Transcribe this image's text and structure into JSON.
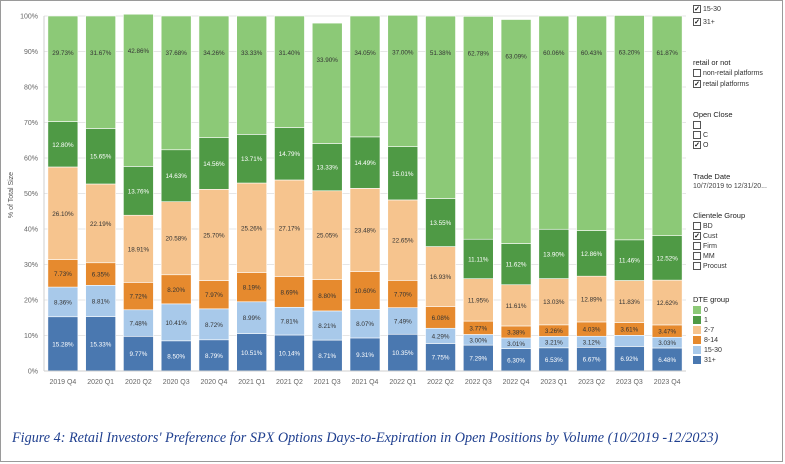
{
  "chart_data": {
    "type": "bar",
    "stacked": true,
    "ylabel": "% of Total Size",
    "yticks": [
      "0%",
      "10%",
      "20%",
      "30%",
      "40%",
      "50%",
      "60%",
      "70%",
      "80%",
      "90%",
      "100%"
    ],
    "ylim": [
      0,
      100
    ],
    "categories": [
      "2019 Q4",
      "2020 Q1",
      "2020 Q2",
      "2020 Q3",
      "2020 Q4",
      "2021 Q1",
      "2021 Q2",
      "2021 Q3",
      "2021 Q4",
      "2022 Q1",
      "2022 Q2",
      "2022 Q3",
      "2022 Q4",
      "2023 Q1",
      "2023 Q2",
      "2023 Q3",
      "2023 Q4"
    ],
    "series": [
      {
        "name": "31+",
        "color": "#4a78b0",
        "text_color": "#ffffff",
        "values": [
          15.28,
          15.33,
          9.77,
          8.5,
          8.79,
          10.51,
          10.14,
          8.71,
          9.31,
          10.35,
          7.75,
          7.29,
          6.3,
          6.53,
          6.67,
          6.92,
          6.48
        ],
        "labels": [
          "15.28%",
          "15.33%",
          "9.77%",
          "8.50%",
          "8.79%",
          "10.51%",
          "10.14%",
          "8.71%",
          "9.31%",
          "10.35%",
          "7.75%",
          "7.29%",
          "6.30%",
          "6.53%",
          "6.67%",
          "6.92%",
          "6.48%"
        ]
      },
      {
        "name": "15-30",
        "color": "#a8c9ea",
        "text_color": "#333333",
        "values": [
          8.36,
          8.81,
          7.48,
          10.41,
          8.72,
          8.99,
          7.81,
          8.21,
          8.07,
          7.49,
          4.29,
          3.0,
          3.01,
          3.21,
          3.12,
          3.13,
          3.03
        ],
        "labels": [
          "8.36%",
          "8.81%",
          "7.48%",
          "10.41%",
          "8.72%",
          "8.99%",
          "7.81%",
          "8.21%",
          "8.07%",
          "7.49%",
          "4.29%",
          "3.00%",
          "3.01%",
          "3.21%",
          "3.12%",
          "",
          "3.03%"
        ]
      },
      {
        "name": "8-14",
        "color": "#e68a2e",
        "text_color": "#333333",
        "values": [
          7.73,
          6.35,
          7.72,
          8.2,
          7.97,
          8.19,
          8.69,
          8.8,
          10.6,
          7.7,
          6.08,
          3.77,
          3.38,
          3.26,
          4.03,
          3.61,
          3.47
        ],
        "labels": [
          "7.73%",
          "6.35%",
          "7.72%",
          "8.20%",
          "7.97%",
          "8.19%",
          "8.69%",
          "8.80%",
          "10.60%",
          "7.70%",
          "6.08%",
          "3.77%",
          "3.38%",
          "3.26%",
          "4.03%",
          "3.61%",
          "3.47%"
        ]
      },
      {
        "name": "2-7",
        "color": "#f6c48e",
        "text_color": "#333333",
        "values": [
          26.1,
          22.19,
          18.91,
          20.58,
          25.7,
          25.26,
          27.17,
          25.05,
          23.48,
          22.65,
          16.93,
          11.95,
          11.61,
          13.03,
          12.89,
          11.83,
          12.62
        ],
        "labels": [
          "26.10%",
          "22.19%",
          "18.91%",
          "20.58%",
          "25.70%",
          "25.26%",
          "27.17%",
          "25.05%",
          "23.48%",
          "22.65%",
          "16.93%",
          "11.95%",
          "11.61%",
          "13.03%",
          "12.89%",
          "11.83%",
          "12.62%"
        ]
      },
      {
        "name": "1",
        "color": "#4f9a45",
        "text_color": "#ffffff",
        "values": [
          12.8,
          15.65,
          13.76,
          14.63,
          14.56,
          13.71,
          14.79,
          13.33,
          14.49,
          15.01,
          13.55,
          11.11,
          11.62,
          13.9,
          12.86,
          11.46,
          12.52
        ],
        "labels": [
          "12.80%",
          "15.65%",
          "13.76%",
          "14.63%",
          "14.56%",
          "13.71%",
          "14.79%",
          "13.33%",
          "14.49%",
          "15.01%",
          "13.55%",
          "11.11%",
          "11.62%",
          "13.90%",
          "12.86%",
          "11.46%",
          "12.52%"
        ]
      },
      {
        "name": "0",
        "color": "#8cc977",
        "text_color": "#333333",
        "values": [
          29.73,
          31.67,
          42.86,
          37.68,
          34.26,
          33.33,
          31.4,
          33.9,
          34.05,
          37.0,
          51.38,
          62.78,
          63.09,
          60.06,
          60.43,
          63.2,
          61.87
        ],
        "labels": [
          "29.73%",
          "31.67%",
          "42.86%",
          "37.68%",
          "34.26%",
          "33.33%",
          "31.40%",
          "33.90%",
          "34.05%",
          "37.00%",
          "51.38%",
          "62.78%",
          "63.09%",
          "60.06%",
          "60.43%",
          "63.20%",
          "61.87%"
        ]
      }
    ]
  },
  "filters": {
    "dte_top": {
      "items": [
        {
          "label": "15-30",
          "checked": true
        },
        {
          "label": "31+",
          "checked": true
        }
      ]
    },
    "retail": {
      "title": "retail or not",
      "items": [
        {
          "label": "non-retail platforms",
          "checked": false
        },
        {
          "label": "retail platforms",
          "checked": true
        }
      ]
    },
    "open_close": {
      "title": "Open Close",
      "items": [
        {
          "label": "",
          "checked": false
        },
        {
          "label": "C",
          "checked": false
        },
        {
          "label": "O",
          "checked": true
        }
      ]
    },
    "trade_date": {
      "title": "Trade Date",
      "value": "10/7/2019 to 12/31/20..."
    },
    "clientele": {
      "title": "Clientele Group",
      "items": [
        {
          "label": "BD",
          "checked": false
        },
        {
          "label": "Cust",
          "checked": true
        },
        {
          "label": "Firm",
          "checked": false
        },
        {
          "label": "MM",
          "checked": false
        },
        {
          "label": "Procust",
          "checked": false
        }
      ]
    }
  },
  "legend": {
    "title": "DTE group",
    "items": [
      {
        "label": "0",
        "color": "#8cc977"
      },
      {
        "label": "1",
        "color": "#4f9a45"
      },
      {
        "label": "2-7",
        "color": "#f6c48e"
      },
      {
        "label": "8-14",
        "color": "#e68a2e"
      },
      {
        "label": "15-30",
        "color": "#a8c9ea"
      },
      {
        "label": "31+",
        "color": "#4a78b0"
      }
    ]
  },
  "caption": "Figure 4: Retail Investors' Preference for SPX Options Days-to-Expiration in Open Positions by Volume (10/2019 -12/2023)"
}
